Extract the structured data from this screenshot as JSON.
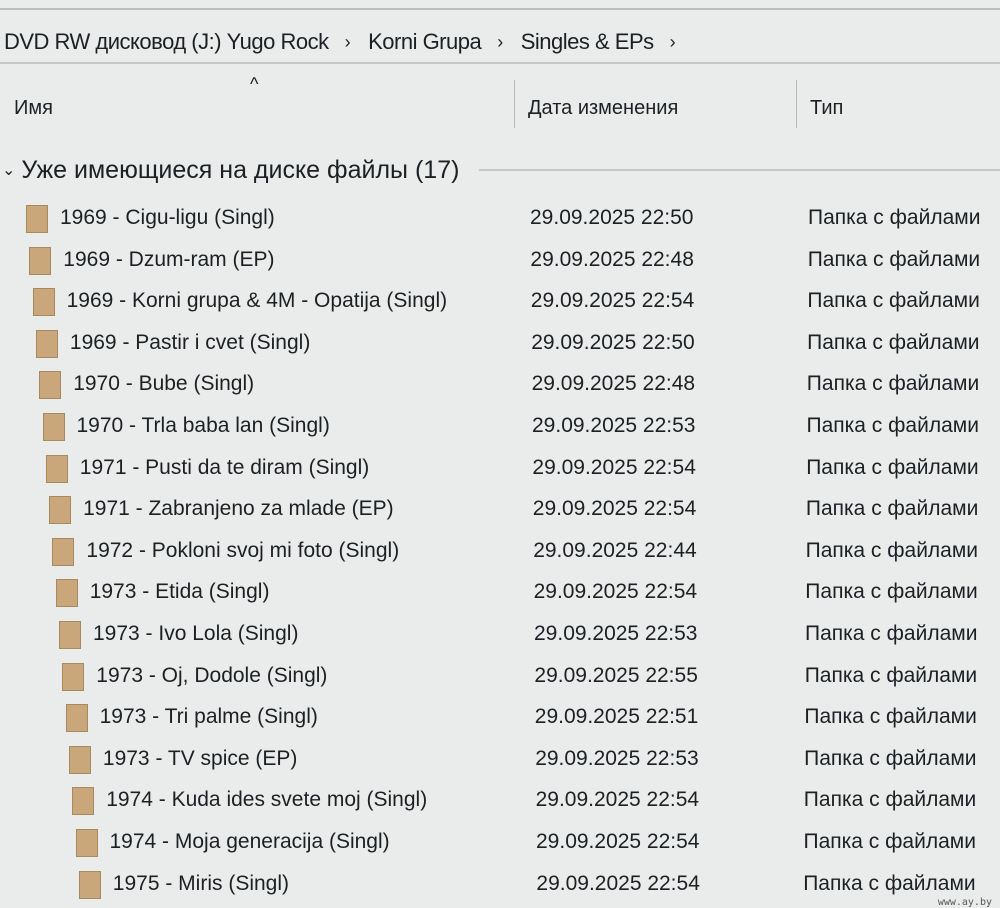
{
  "breadcrumb": [
    "DVD RW дисковод (J:) Yugo Rock",
    "Korni Grupa",
    "Singles & EPs"
  ],
  "breadcrumb_separator": "›",
  "columns": {
    "name": "Имя",
    "date": "Дата изменения",
    "type": "Тип",
    "sort_indicator": "^"
  },
  "group": {
    "chevron": "⌄",
    "label": "Уже имеющиеся на диске файлы (17)"
  },
  "files": [
    {
      "name": "1969 - Cigu-ligu (Singl)",
      "date": "29.09.2025 22:50",
      "type": "Папка с файлами"
    },
    {
      "name": "1969 - Dzum-ram (EP)",
      "date": "29.09.2025 22:48",
      "type": "Папка с файлами"
    },
    {
      "name": "1969 - Korni grupa & 4M - Opatija (Singl)",
      "date": "29.09.2025 22:54",
      "type": "Папка с файлами"
    },
    {
      "name": "1969 - Pastir i cvet (Singl)",
      "date": "29.09.2025 22:50",
      "type": "Папка с файлами"
    },
    {
      "name": "1970 - Bube (Singl)",
      "date": "29.09.2025 22:48",
      "type": "Папка с файлами"
    },
    {
      "name": "1970 - Trla baba lan (Singl)",
      "date": "29.09.2025 22:53",
      "type": "Папка с файлами"
    },
    {
      "name": "1971 - Pusti da te diram (Singl)",
      "date": "29.09.2025 22:54",
      "type": "Папка с файлами"
    },
    {
      "name": "1971 - Zabranjeno za mlade (EP)",
      "date": "29.09.2025 22:54",
      "type": "Папка с файлами"
    },
    {
      "name": "1972 - Pokloni svoj mi foto (Singl)",
      "date": "29.09.2025 22:44",
      "type": "Папка с файлами"
    },
    {
      "name": "1973 - Etida (Singl)",
      "date": "29.09.2025 22:54",
      "type": "Папка с файлами"
    },
    {
      "name": "1973 - Ivo Lola (Singl)",
      "date": "29.09.2025 22:53",
      "type": "Папка с файлами"
    },
    {
      "name": "1973 - Oj, Dodole (Singl)",
      "date": "29.09.2025 22:55",
      "type": "Папка с файлами"
    },
    {
      "name": "1973 - Tri palme (Singl)",
      "date": "29.09.2025 22:51",
      "type": "Папка с файлами"
    },
    {
      "name": "1973 - TV spice (EP)",
      "date": "29.09.2025 22:53",
      "type": "Папка с файлами"
    },
    {
      "name": "1974 - Kuda ides svete moj (Singl)",
      "date": "29.09.2025 22:54",
      "type": "Папка с файлами"
    },
    {
      "name": "1974 - Moja generacija (Singl)",
      "date": "29.09.2025 22:54",
      "type": "Папка с файлами"
    },
    {
      "name": "1975 - Miris (Singl)",
      "date": "29.09.2025 22:54",
      "type": "Папка с файлами"
    }
  ],
  "folder_color": "#c9a77a",
  "watermark": "www.ay.by"
}
